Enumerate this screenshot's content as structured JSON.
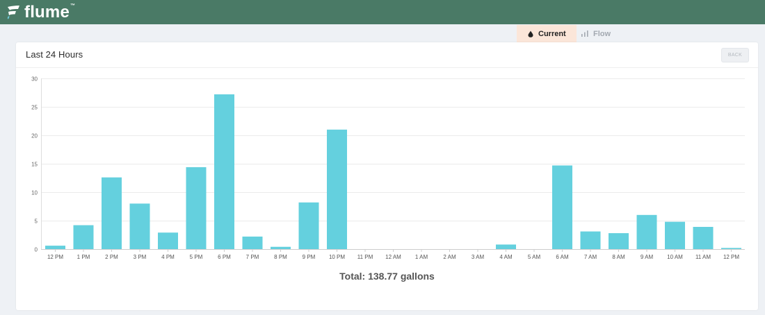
{
  "header": {
    "logo_text": "flume",
    "logo_tm": "™"
  },
  "tabs": [
    {
      "label": "Current",
      "icon": "water-drop-icon",
      "active": true
    },
    {
      "label": "Flow",
      "icon": "bar-chart-icon",
      "active": false
    }
  ],
  "card": {
    "title": "Last 24 Hours",
    "back_label": "BACK",
    "total_label": "Total: 138.77 gallons"
  },
  "colors": {
    "header_bg": "#4a7a66",
    "bar": "#64d0de",
    "current_tab_bg": "#fbe6d9"
  },
  "chart_data": {
    "type": "bar",
    "categories": [
      "12 PM",
      "1 PM",
      "2 PM",
      "3 PM",
      "4 PM",
      "5 PM",
      "6 PM",
      "7 PM",
      "8 PM",
      "9 PM",
      "10 PM",
      "11 PM",
      "12 AM",
      "1 AM",
      "2 AM",
      "3 AM",
      "4 AM",
      "5 AM",
      "6 AM",
      "7 AM",
      "8 AM",
      "9 AM",
      "10 AM",
      "11 AM",
      "12 PM"
    ],
    "values": [
      0.6,
      4.2,
      12.6,
      8.0,
      2.9,
      14.4,
      27.2,
      2.2,
      0.4,
      8.2,
      21.0,
      0,
      0,
      0,
      0,
      0,
      0.8,
      0,
      14.7,
      3.1,
      2.8,
      6.0,
      4.8,
      3.9,
      0.2
    ],
    "yticks": [
      0,
      5,
      10,
      15,
      20,
      25,
      30
    ],
    "ylim": [
      0,
      30
    ],
    "grid": true,
    "legend": "none"
  }
}
